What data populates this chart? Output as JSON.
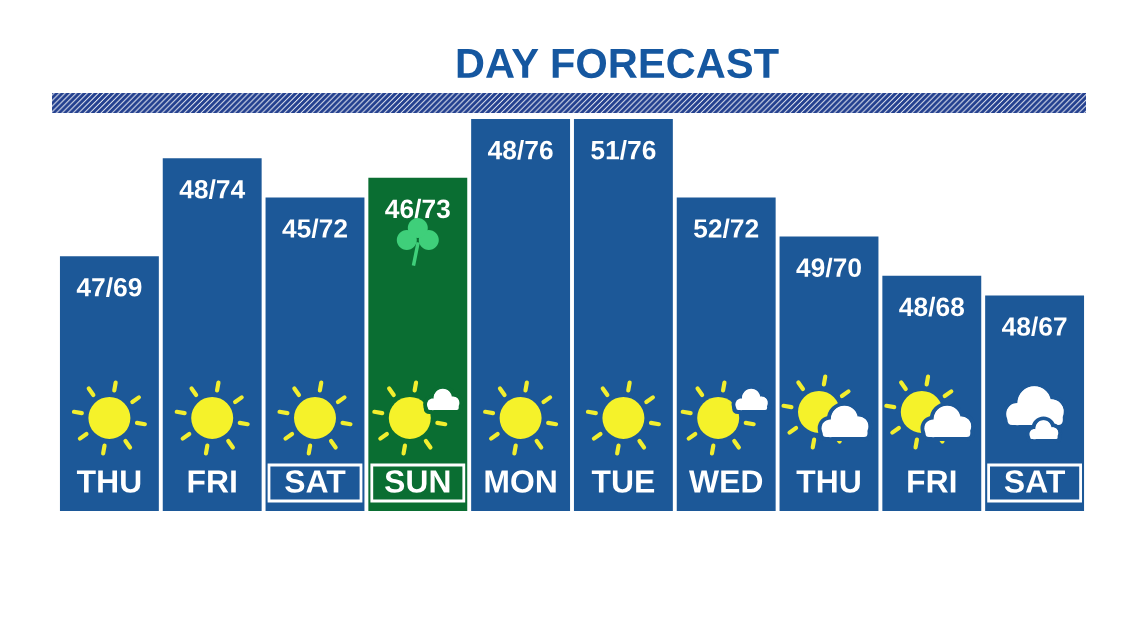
{
  "chart_data": {
    "type": "bar",
    "title": "DAY FORECAST",
    "categories": [
      "THU",
      "FRI",
      "SAT",
      "SUN",
      "MON",
      "TUE",
      "WED",
      "THU",
      "FRI",
      "SAT"
    ],
    "values": [
      69,
      74,
      72,
      73,
      76,
      76,
      72,
      70,
      68,
      67
    ],
    "value_labels": [
      "47/69",
      "48/74",
      "45/72",
      "46/73",
      "48/76",
      "51/76",
      "52/72",
      "49/70",
      "48/68",
      "48/67"
    ],
    "colors": [
      "#1c5898",
      "#1c5898",
      "#1c5898",
      "#0a6e32",
      "#1c5898",
      "#1c5898",
      "#1c5898",
      "#1c5898",
      "#1c5898",
      "#1c5898"
    ],
    "ylim": [
      56,
      76
    ],
    "tick_labels": "x"
  }
}
